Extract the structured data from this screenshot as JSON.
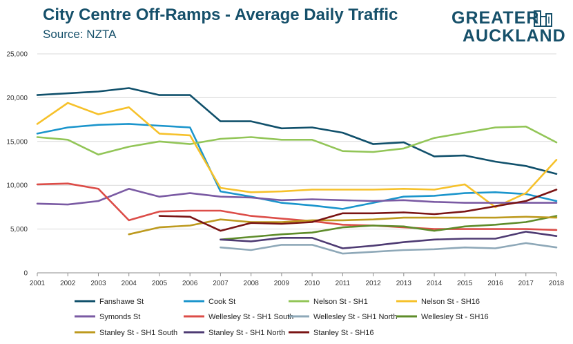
{
  "header": {
    "title": "City Centre Off-Ramps - Average Daily Traffic",
    "subtitle": "Source: NZTA"
  },
  "logo": {
    "line1": "GREATER",
    "line2": "AUCKLAND",
    "icon": "city-skyline-icon",
    "color": "#16506a"
  },
  "chart_data": {
    "type": "line",
    "x": [
      2001,
      2002,
      2003,
      2004,
      2005,
      2006,
      2007,
      2008,
      2009,
      2010,
      2011,
      2012,
      2013,
      2014,
      2015,
      2016,
      2017,
      2018
    ],
    "ylim": [
      0,
      25000
    ],
    "yticks": [
      0,
      5000,
      10000,
      15000,
      20000,
      25000
    ],
    "ytick_labels": [
      "0",
      "5,000",
      "10,000",
      "15,000",
      "20,000",
      "25,000"
    ],
    "grid": true,
    "legend_position": "bottom",
    "series": [
      {
        "name": "Fanshawe St",
        "color": "#10506b",
        "values": [
          20300,
          20500,
          20700,
          21100,
          20300,
          20300,
          17300,
          17300,
          16500,
          16600,
          16000,
          14700,
          14900,
          13300,
          13400,
          12700,
          12200,
          11300
        ]
      },
      {
        "name": "Cook St",
        "color": "#1b95cc",
        "values": [
          15900,
          16600,
          16900,
          17000,
          16800,
          16600,
          9300,
          8700,
          8000,
          7700,
          7300,
          8000,
          8700,
          8800,
          9100,
          9200,
          9000,
          8200
        ]
      },
      {
        "name": "Nelson St - SH1",
        "color": "#92c557",
        "values": [
          15500,
          15200,
          13500,
          14400,
          15000,
          14700,
          15300,
          15500,
          15200,
          15200,
          13900,
          13800,
          14200,
          15400,
          16000,
          16600,
          16700,
          14900
        ]
      },
      {
        "name": "Nelson St - SH16",
        "color": "#f6c12a",
        "values": [
          17000,
          19400,
          18100,
          18900,
          15900,
          15700,
          9700,
          9200,
          9300,
          9500,
          9500,
          9500,
          9600,
          9500,
          10100,
          7500,
          9100,
          12900
        ]
      },
      {
        "name": "Symonds St",
        "color": "#7a5aa3",
        "values": [
          7900,
          7800,
          8200,
          9600,
          8700,
          9100,
          8700,
          8600,
          8300,
          8400,
          8300,
          8200,
          8300,
          8100,
          8000,
          8000,
          8000,
          8000
        ]
      },
      {
        "name": "Wellesley St - SH1 South",
        "color": "#dc4d48",
        "values": [
          10100,
          10200,
          9600,
          6000,
          7000,
          7100,
          7100,
          6500,
          6200,
          5900,
          5500,
          5400,
          5200,
          5000,
          5000,
          5000,
          5000,
          4900
        ]
      },
      {
        "name": "Wellesley St - SH1 North",
        "color": "#8ea8b8",
        "values": [
          null,
          null,
          null,
          null,
          null,
          null,
          2900,
          2600,
          3200,
          3200,
          2200,
          2400,
          2600,
          2700,
          2900,
          2800,
          3400,
          2900
        ]
      },
      {
        "name": "Wellesley St - SH16",
        "color": "#5e8c2a",
        "values": [
          null,
          null,
          null,
          null,
          null,
          null,
          3800,
          4100,
          4400,
          4600,
          5200,
          5400,
          5300,
          4800,
          5300,
          5500,
          5800,
          6500
        ]
      },
      {
        "name": "Stanley St - SH1 South",
        "color": "#bd9a1e",
        "values": [
          null,
          null,
          null,
          4400,
          5200,
          5400,
          6100,
          5800,
          5800,
          6000,
          6000,
          6100,
          6300,
          6300,
          6300,
          6300,
          6400,
          6300
        ]
      },
      {
        "name": "Stanley St - SH1 North",
        "color": "#4e3b73",
        "values": [
          null,
          null,
          null,
          null,
          null,
          null,
          3800,
          3600,
          4000,
          4000,
          2800,
          3100,
          3500,
          3800,
          3900,
          3900,
          4700,
          4200
        ]
      },
      {
        "name": "Stanley St - SH16",
        "color": "#7a1414",
        "values": [
          null,
          null,
          null,
          null,
          6500,
          6400,
          4800,
          5700,
          5600,
          5800,
          6800,
          6800,
          6900,
          6700,
          7000,
          7600,
          8200,
          9500
        ]
      }
    ]
  }
}
